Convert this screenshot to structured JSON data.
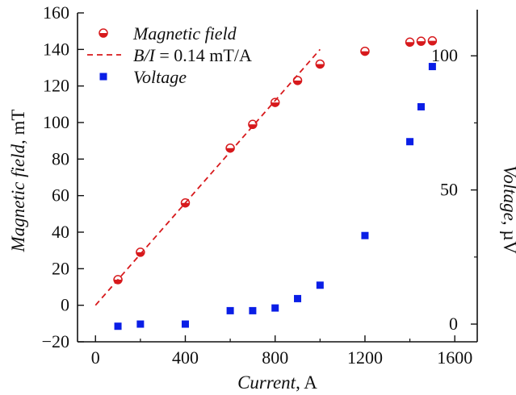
{
  "chart_data": {
    "type": "scatter",
    "x_axis": {
      "label_italic": "Current",
      "label_unit": ", A",
      "range": [
        -80,
        1700
      ],
      "ticks": [
        0,
        400,
        800,
        1200,
        1600
      ],
      "minor_ticks": [
        200,
        600,
        1000,
        1400
      ]
    },
    "y_axis_left": {
      "label_italic": "Magnetic field",
      "label_unit": ", mT",
      "range": [
        -20,
        160
      ],
      "ticks": [
        -20,
        0,
        20,
        40,
        60,
        80,
        100,
        120,
        140,
        160
      ]
    },
    "y_axis_right": {
      "label_italic": "Voltage",
      "label_unit": ", µV",
      "range": [
        -6.6,
        116
      ],
      "ticks": [
        0,
        50,
        100
      ],
      "minor_ticks": [
        25,
        75
      ]
    },
    "legend": {
      "position": "top-left",
      "entries": [
        {
          "label": "Magnetic field",
          "marker": "half-filled-circle",
          "color": "#d7191c"
        },
        {
          "label_italic": "B/I",
          "label_rest": " = 0.14 mT/A",
          "marker": "dashed-line",
          "color": "#d7191c"
        },
        {
          "label": "Voltage",
          "marker": "square",
          "color": "#0a1ee6"
        }
      ]
    },
    "series": [
      {
        "name": "Magnetic field",
        "axis": "left",
        "color": "#d7191c",
        "x": [
          100,
          200,
          400,
          600,
          700,
          800,
          900,
          1000,
          1200,
          1400,
          1450,
          1500
        ],
        "y": [
          14,
          29,
          56,
          86,
          99,
          111,
          123,
          132,
          139,
          144,
          144.5,
          144.7
        ]
      },
      {
        "name": "B/I = 0.14 mT/A",
        "axis": "left",
        "color": "#d7191c",
        "type": "line",
        "x": [
          0,
          1000
        ],
        "y": [
          0,
          140
        ]
      },
      {
        "name": "Voltage",
        "axis": "right",
        "color": "#0a1ee6",
        "x": [
          100,
          200,
          400,
          600,
          700,
          800,
          900,
          1000,
          1200,
          1400,
          1450,
          1500
        ],
        "y": [
          -0.8,
          0,
          0,
          5,
          5,
          6,
          9.5,
          14.5,
          33,
          68,
          81,
          96
        ]
      }
    ]
  }
}
